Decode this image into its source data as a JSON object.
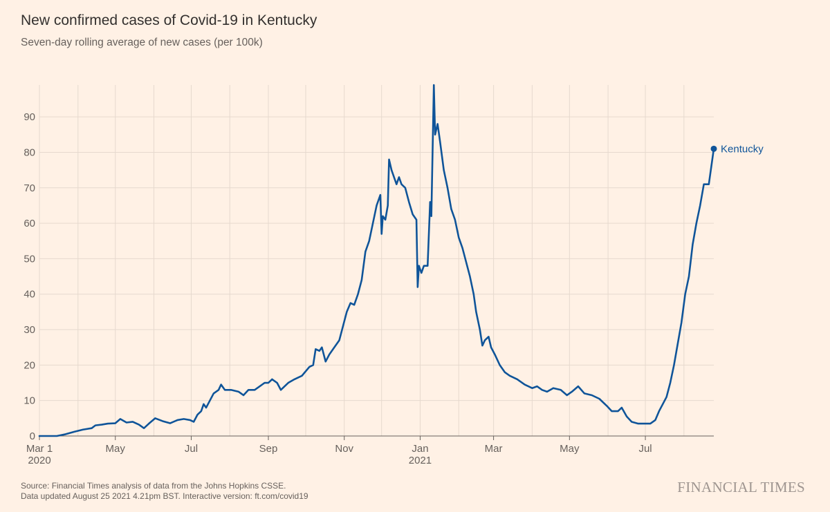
{
  "header": {
    "title": "New confirmed cases of Covid-19 in Kentucky",
    "subtitle": "Seven-day rolling average of new cases (per 100k)"
  },
  "footer": {
    "source": "Source: Financial Times analysis of data from the Johns Hopkins CSSE.",
    "updated": "Data updated August 25 2021 4.21pm BST. Interactive version: ft.com/covid19",
    "brand": "FINANCIAL TIMES"
  },
  "chart_data": {
    "type": "line",
    "title": "New confirmed cases of Covid-19 in Kentucky",
    "subtitle": "Seven-day rolling average of new cases (per 100k)",
    "xlabel": "",
    "ylabel": "",
    "xlim": [
      "2020-03-01",
      "2021-08-25"
    ],
    "ylim": [
      0,
      99
    ],
    "grid": true,
    "line_color": "#0f5499",
    "x_ticks": [
      {
        "date": "2020-03-01",
        "label": "Mar 1",
        "year": "2020"
      },
      {
        "date": "2020-05-01",
        "label": "May",
        "year": ""
      },
      {
        "date": "2020-07-01",
        "label": "Jul",
        "year": ""
      },
      {
        "date": "2020-09-01",
        "label": "Sep",
        "year": ""
      },
      {
        "date": "2020-11-01",
        "label": "Nov",
        "year": ""
      },
      {
        "date": "2021-01-01",
        "label": "Jan",
        "year": "2021"
      },
      {
        "date": "2021-03-01",
        "label": "Mar",
        "year": ""
      },
      {
        "date": "2021-05-01",
        "label": "May",
        "year": ""
      },
      {
        "date": "2021-07-01",
        "label": "Jul",
        "year": ""
      }
    ],
    "minor_gridlines": [
      "2020-04-01",
      "2020-06-01",
      "2020-08-01",
      "2020-10-01",
      "2020-12-01",
      "2021-02-01",
      "2021-04-01",
      "2021-06-01",
      "2021-08-01"
    ],
    "y_ticks": [
      0,
      10,
      20,
      30,
      40,
      50,
      60,
      70,
      80,
      90
    ],
    "series": [
      {
        "name": "Kentucky",
        "points": [
          [
            "2020-03-01",
            0
          ],
          [
            "2020-03-15",
            0
          ],
          [
            "2020-03-22",
            0.5
          ],
          [
            "2020-03-29",
            1.2
          ],
          [
            "2020-04-05",
            1.8
          ],
          [
            "2020-04-12",
            2.2
          ],
          [
            "2020-04-15",
            3
          ],
          [
            "2020-04-20",
            3.2
          ],
          [
            "2020-04-25",
            3.5
          ],
          [
            "2020-05-01",
            3.6
          ],
          [
            "2020-05-05",
            4.8
          ],
          [
            "2020-05-10",
            3.8
          ],
          [
            "2020-05-15",
            4
          ],
          [
            "2020-05-20",
            3.2
          ],
          [
            "2020-05-24",
            2.2
          ],
          [
            "2020-05-28",
            3.5
          ],
          [
            "2020-06-02",
            5
          ],
          [
            "2020-06-08",
            4.2
          ],
          [
            "2020-06-14",
            3.6
          ],
          [
            "2020-06-20",
            4.5
          ],
          [
            "2020-06-25",
            4.8
          ],
          [
            "2020-06-30",
            4.5
          ],
          [
            "2020-07-03",
            4
          ],
          [
            "2020-07-06",
            6
          ],
          [
            "2020-07-09",
            7
          ],
          [
            "2020-07-11",
            9
          ],
          [
            "2020-07-13",
            8
          ],
          [
            "2020-07-16",
            10
          ],
          [
            "2020-07-19",
            12
          ],
          [
            "2020-07-23",
            13
          ],
          [
            "2020-07-25",
            14.5
          ],
          [
            "2020-07-28",
            13
          ],
          [
            "2020-08-02",
            13
          ],
          [
            "2020-08-08",
            12.5
          ],
          [
            "2020-08-12",
            11.5
          ],
          [
            "2020-08-16",
            13
          ],
          [
            "2020-08-21",
            13
          ],
          [
            "2020-08-25",
            14
          ],
          [
            "2020-08-29",
            15
          ],
          [
            "2020-09-01",
            15
          ],
          [
            "2020-09-04",
            16
          ],
          [
            "2020-09-08",
            15
          ],
          [
            "2020-09-11",
            13
          ],
          [
            "2020-09-14",
            14
          ],
          [
            "2020-09-17",
            15
          ],
          [
            "2020-09-22",
            16
          ],
          [
            "2020-09-28",
            17
          ],
          [
            "2020-10-04",
            19.5
          ],
          [
            "2020-10-07",
            20
          ],
          [
            "2020-10-09",
            24.5
          ],
          [
            "2020-10-12",
            24
          ],
          [
            "2020-10-14",
            25
          ],
          [
            "2020-10-17",
            21
          ],
          [
            "2020-10-20",
            23
          ],
          [
            "2020-10-25",
            25.5
          ],
          [
            "2020-10-28",
            27
          ],
          [
            "2020-10-31",
            31
          ],
          [
            "2020-11-03",
            35
          ],
          [
            "2020-11-06",
            37.5
          ],
          [
            "2020-11-09",
            37
          ],
          [
            "2020-11-12",
            40
          ],
          [
            "2020-11-15",
            44
          ],
          [
            "2020-11-18",
            52
          ],
          [
            "2020-11-21",
            55
          ],
          [
            "2020-11-24",
            60
          ],
          [
            "2020-11-27",
            65
          ],
          [
            "2020-11-30",
            68
          ],
          [
            "2020-12-01",
            57
          ],
          [
            "2020-12-02",
            62
          ],
          [
            "2020-12-04",
            61
          ],
          [
            "2020-12-06",
            65
          ],
          [
            "2020-12-07",
            78
          ],
          [
            "2020-12-09",
            75
          ],
          [
            "2020-12-11",
            73
          ],
          [
            "2020-12-13",
            71
          ],
          [
            "2020-12-15",
            73
          ],
          [
            "2020-12-17",
            71
          ],
          [
            "2020-12-20",
            70
          ],
          [
            "2020-12-23",
            66
          ],
          [
            "2020-12-26",
            62.5
          ],
          [
            "2020-12-29",
            61
          ],
          [
            "2020-12-30",
            42
          ],
          [
            "2020-12-31",
            48
          ],
          [
            "2021-01-02",
            46
          ],
          [
            "2021-01-04",
            48
          ],
          [
            "2021-01-07",
            48
          ],
          [
            "2021-01-09",
            66
          ],
          [
            "2021-01-10",
            62
          ],
          [
            "2021-01-12",
            99
          ],
          [
            "2021-01-13",
            85
          ],
          [
            "2021-01-15",
            88
          ],
          [
            "2021-01-17",
            83
          ],
          [
            "2021-01-20",
            75
          ],
          [
            "2021-01-23",
            70
          ],
          [
            "2021-01-26",
            64
          ],
          [
            "2021-01-29",
            61
          ],
          [
            "2021-02-01",
            56
          ],
          [
            "2021-02-04",
            53
          ],
          [
            "2021-02-07",
            49
          ],
          [
            "2021-02-10",
            45
          ],
          [
            "2021-02-13",
            40
          ],
          [
            "2021-02-15",
            35
          ],
          [
            "2021-02-18",
            30
          ],
          [
            "2021-02-20",
            25.5
          ],
          [
            "2021-02-22",
            27
          ],
          [
            "2021-02-25",
            28
          ],
          [
            "2021-02-27",
            25
          ],
          [
            "2021-03-02",
            23
          ],
          [
            "2021-03-06",
            20
          ],
          [
            "2021-03-10",
            18
          ],
          [
            "2021-03-14",
            17
          ],
          [
            "2021-03-20",
            16
          ],
          [
            "2021-03-26",
            14.5
          ],
          [
            "2021-04-01",
            13.5
          ],
          [
            "2021-04-05",
            14
          ],
          [
            "2021-04-09",
            13
          ],
          [
            "2021-04-13",
            12.5
          ],
          [
            "2021-04-18",
            13.5
          ],
          [
            "2021-04-24",
            13
          ],
          [
            "2021-04-29",
            11.5
          ],
          [
            "2021-05-03",
            12.5
          ],
          [
            "2021-05-08",
            14
          ],
          [
            "2021-05-13",
            12
          ],
          [
            "2021-05-19",
            11.5
          ],
          [
            "2021-05-25",
            10.5
          ],
          [
            "2021-05-31",
            8.5
          ],
          [
            "2021-06-04",
            7
          ],
          [
            "2021-06-09",
            7
          ],
          [
            "2021-06-12",
            8
          ],
          [
            "2021-06-16",
            5.5
          ],
          [
            "2021-06-20",
            4
          ],
          [
            "2021-06-25",
            3.5
          ],
          [
            "2021-06-29",
            3.5
          ],
          [
            "2021-07-02",
            3.5
          ],
          [
            "2021-07-05",
            3.5
          ],
          [
            "2021-07-09",
            4.5
          ],
          [
            "2021-07-12",
            7
          ],
          [
            "2021-07-15",
            9
          ],
          [
            "2021-07-18",
            11
          ],
          [
            "2021-07-21",
            15
          ],
          [
            "2021-07-24",
            20
          ],
          [
            "2021-07-27",
            26
          ],
          [
            "2021-07-30",
            32
          ],
          [
            "2021-08-02",
            40
          ],
          [
            "2021-08-05",
            45
          ],
          [
            "2021-08-08",
            54
          ],
          [
            "2021-08-11",
            60
          ],
          [
            "2021-08-14",
            65
          ],
          [
            "2021-08-17",
            71
          ],
          [
            "2021-08-21",
            71
          ],
          [
            "2021-08-25",
            81
          ]
        ]
      }
    ]
  }
}
